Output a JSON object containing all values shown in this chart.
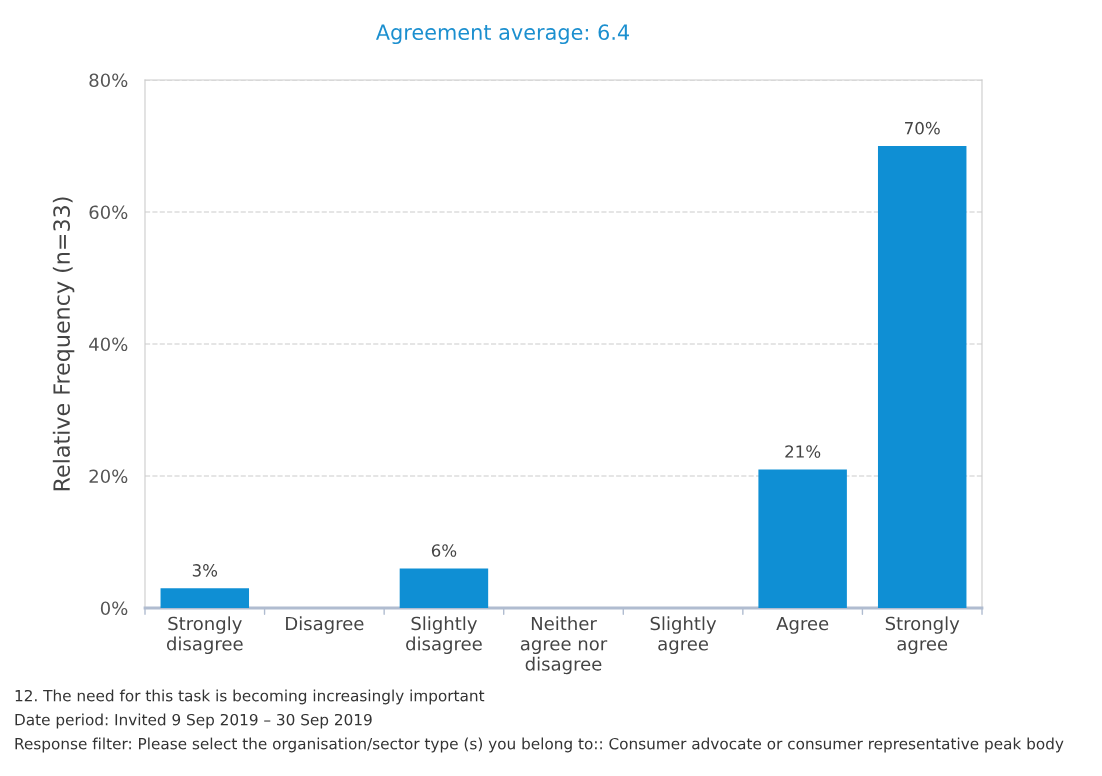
{
  "chart_data": {
    "type": "bar",
    "title": "Agreement average: 6.4",
    "ylabel": "Relative Frequency (n=33)",
    "categories": [
      "Strongly disagree",
      "Disagree",
      "Slightly disagree",
      "Neither agree nor disagree",
      "Slightly agree",
      "Agree",
      "Strongly agree"
    ],
    "values": [
      3,
      0,
      6,
      0,
      0,
      21,
      70
    ],
    "value_labels": [
      "3%",
      null,
      "6%",
      null,
      null,
      "21%",
      "70%"
    ],
    "color": "#0f8fd4",
    "ylim": [
      0,
      80
    ],
    "yticks": [
      {
        "value": 0,
        "label": "0%"
      },
      {
        "value": 20,
        "label": "20%"
      },
      {
        "value": 40,
        "label": "40%"
      },
      {
        "value": 60,
        "label": "60%"
      },
      {
        "value": 80,
        "label": "80%"
      }
    ],
    "grid": "y",
    "annotations": [
      "12. The need for this task is becoming increasingly important",
      "Date period: Invited 9 Sep 2019 – 30 Sep 2019",
      "Response filter: Please select the organisation/sector type (s) you belong to:: Consumer advocate or consumer representative peak body"
    ]
  }
}
